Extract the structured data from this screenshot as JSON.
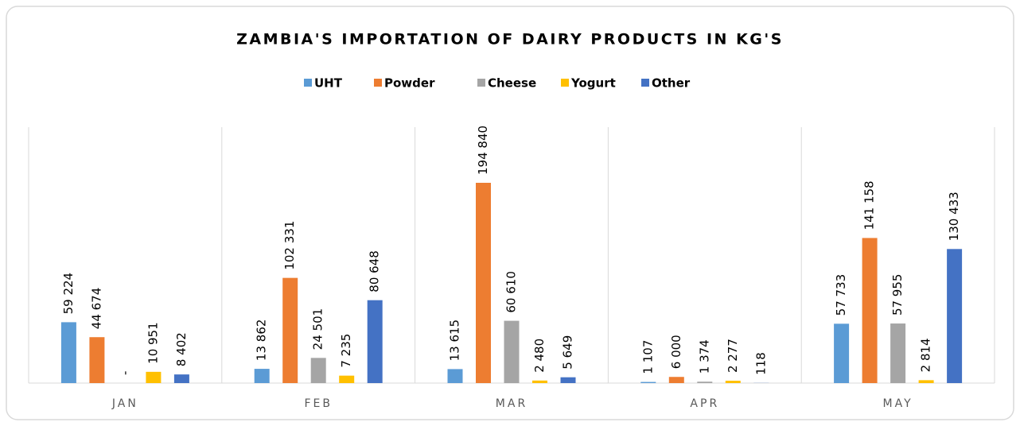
{
  "chart_data": {
    "type": "bar",
    "title": "ZAMBIA'S IMPORTATION OF DAIRY PRODUCTS IN KG'S",
    "categories": [
      "JAN",
      "FEB",
      "MAR",
      "APR",
      "MAY"
    ],
    "series": [
      {
        "name": "UHT",
        "color": "#5b9bd5",
        "values": [
          59224,
          13862,
          13615,
          1107,
          57733
        ],
        "value_labels": [
          "59 224",
          "13 862",
          "13 615",
          "1 107",
          "57 733"
        ]
      },
      {
        "name": "Powder",
        "color": "#ed7d31",
        "values": [
          44674,
          102331,
          194840,
          6000,
          141158
        ],
        "value_labels": [
          "44 674",
          "102 331",
          "194 840",
          "6 000",
          "141 158"
        ]
      },
      {
        "name": "Cheese",
        "color": "#a5a5a5",
        "values": [
          0,
          24501,
          60610,
          1374,
          57955
        ],
        "value_labels": [
          "-",
          "24 501",
          "60 610",
          "1 374",
          "57 955"
        ]
      },
      {
        "name": "Yogurt",
        "color": "#ffc000",
        "values": [
          10951,
          7235,
          2480,
          2277,
          2814
        ],
        "value_labels": [
          "10 951",
          "7 235",
          "2 480",
          "2 277",
          "2 814"
        ]
      },
      {
        "name": "Other",
        "color": "#4472c4",
        "values": [
          8402,
          80648,
          5649,
          118,
          130433
        ],
        "value_labels": [
          "8 402",
          "80 648",
          "5 649",
          "118",
          "130 433"
        ]
      }
    ],
    "legend": "top"
  }
}
